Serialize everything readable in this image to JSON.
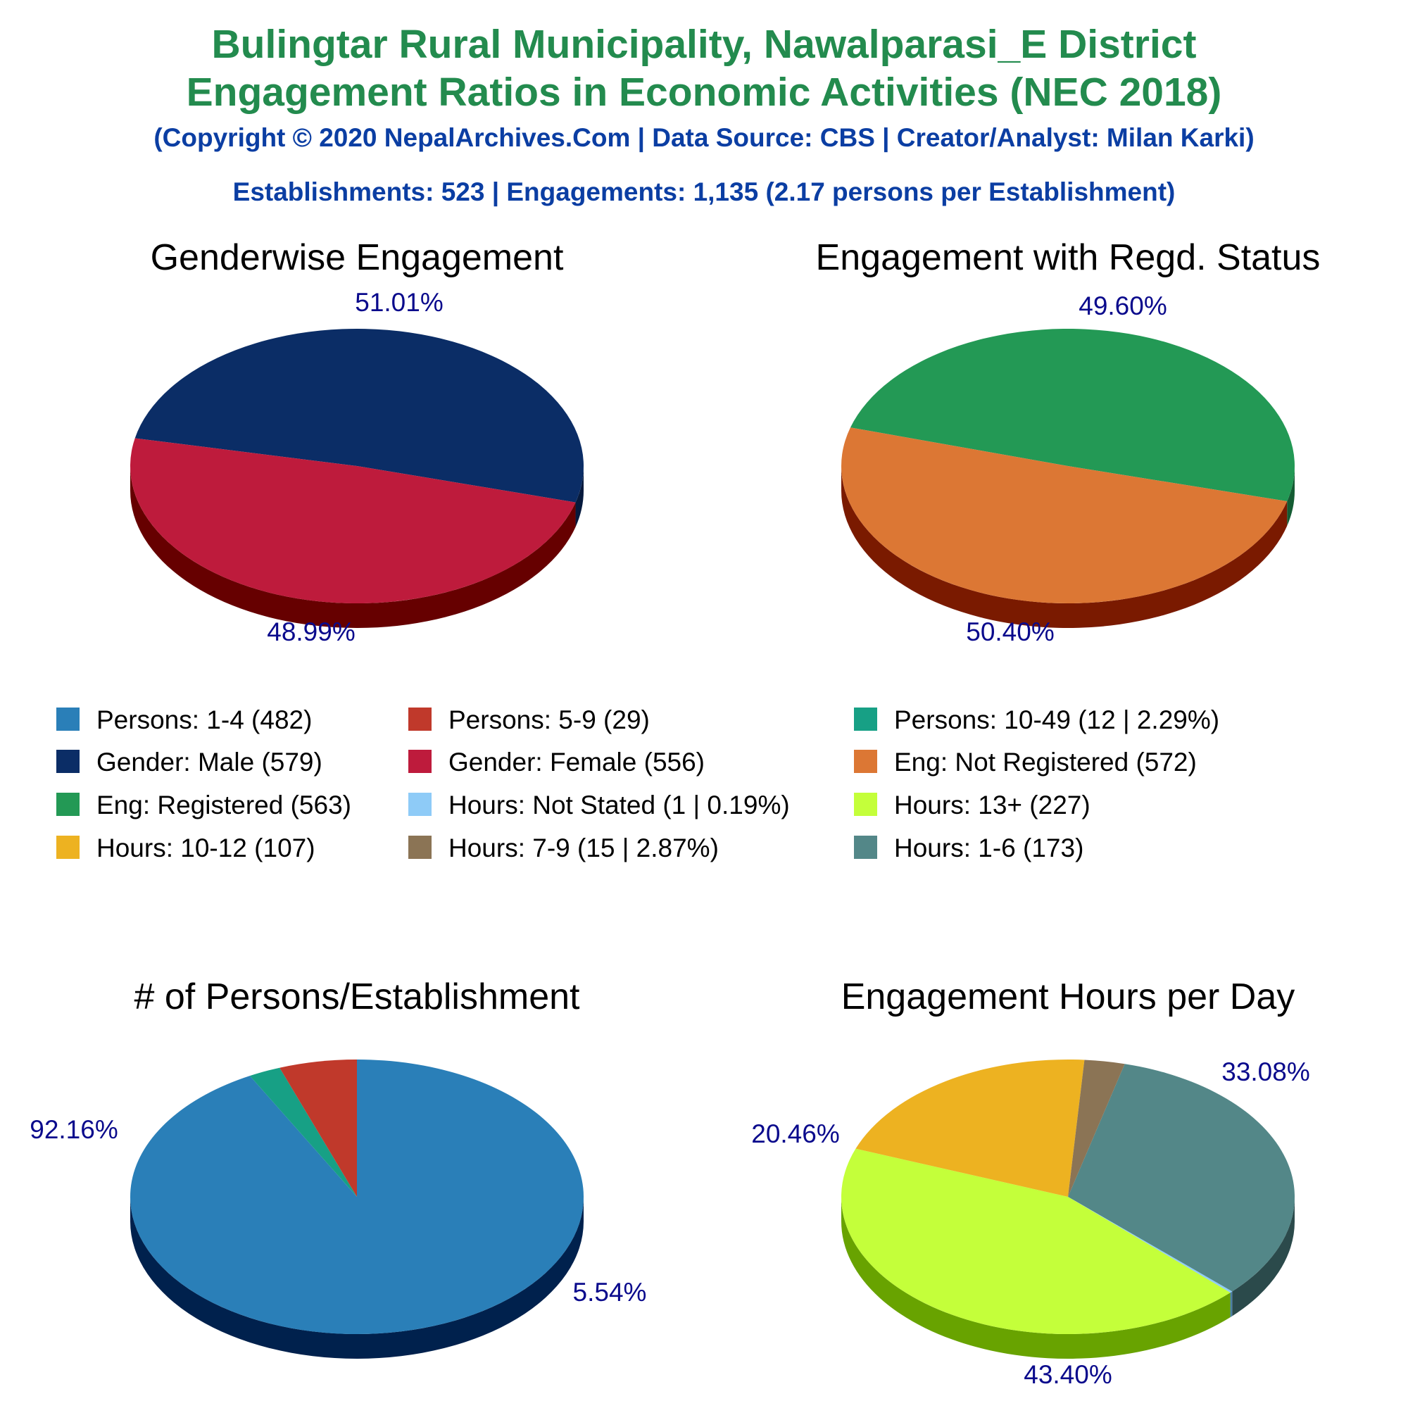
{
  "header": {
    "title_line1": "Bulingtar Rural Municipality, Nawalparasi_E District",
    "title_line2": "Engagement Ratios in Economic Activities (NEC 2018)",
    "copyright": "(Copyright © 2020 NepalArchives.Com | Data Source: CBS | Creator/Analyst: Milan Karki)",
    "summary": "Establishments: 523 | Engagements: 1,135 (2.17 persons per Establishment)"
  },
  "legend": [
    {
      "label": "Persons: 1-4 (482)",
      "color": "#2a7fb8"
    },
    {
      "label": "Persons: 5-9 (29)",
      "color": "#c0392b"
    },
    {
      "label": "Persons: 10-49 (12 | 2.29%)",
      "color": "#17a085"
    },
    {
      "label": "Gender: Male (579)",
      "color": "#0b2d66"
    },
    {
      "label": "Gender: Female (556)",
      "color": "#be1b3c"
    },
    {
      "label": "Eng: Not Registered (572)",
      "color": "#dc7734"
    },
    {
      "label": "Eng: Registered (563)",
      "color": "#239955"
    },
    {
      "label": "Hours: Not Stated (1 | 0.19%)",
      "color": "#8ecbf7"
    },
    {
      "label": "Hours: 13+ (227)",
      "color": "#c4ff3a"
    },
    {
      "label": "Hours: 10-12 (107)",
      "color": "#edb221"
    },
    {
      "label": "Hours: 7-9 (15 | 2.87%)",
      "color": "#8b7455"
    },
    {
      "label": "Hours: 1-6 (173)",
      "color": "#538788"
    }
  ],
  "chart_data": [
    {
      "type": "pie",
      "title": "Genderwise Engagement",
      "slices": [
        {
          "label": "Gender: Male",
          "value": 579,
          "percent": 51.01,
          "color": "#0b2d66",
          "side": "#061a3d",
          "pct_label": "51.01%"
        },
        {
          "label": "Gender: Female",
          "value": 556,
          "percent": 48.99,
          "color": "#be1b3c",
          "side": "#660000",
          "pct_label": "48.99%"
        }
      ]
    },
    {
      "type": "pie",
      "title": "Engagement with Regd. Status",
      "slices": [
        {
          "label": "Eng: Registered",
          "value": 563,
          "percent": 49.6,
          "color": "#239955",
          "side": "#145c33",
          "pct_label": "49.60%"
        },
        {
          "label": "Eng: Not Registered",
          "value": 572,
          "percent": 50.4,
          "color": "#dc7734",
          "side": "#7a1a00",
          "pct_label": "50.40%"
        }
      ]
    },
    {
      "type": "pie",
      "title": "# of Persons/Establishment",
      "slices": [
        {
          "label": "Persons: 1-4",
          "value": 482,
          "percent": 92.16,
          "color": "#2a7fb8",
          "side": "#00214d",
          "pct_label": "92.16%"
        },
        {
          "label": "Persons: 10-49",
          "value": 12,
          "percent": 2.29,
          "color": "#17a085",
          "side": "#005040",
          "pct_label": ""
        },
        {
          "label": "Persons: 5-9",
          "value": 29,
          "percent": 5.54,
          "color": "#c0392b",
          "side": "#6b0000",
          "pct_label": "5.54%"
        }
      ]
    },
    {
      "type": "pie",
      "title": "Engagement Hours per Day",
      "slices": [
        {
          "label": "Hours: 1-6",
          "value": 173,
          "percent": 33.08,
          "color": "#538788",
          "side": "#2b4a4b",
          "pct_label": "33.08%"
        },
        {
          "label": "Hours: Not Stated",
          "value": 1,
          "percent": 0.19,
          "color": "#8ecbf7",
          "side": "#4b7fa6",
          "pct_label": ""
        },
        {
          "label": "Hours: 13+",
          "value": 227,
          "percent": 43.4,
          "color": "#c4ff3a",
          "side": "#68a300",
          "pct_label": "43.40%"
        },
        {
          "label": "Hours: 10-12",
          "value": 107,
          "percent": 20.46,
          "color": "#edb221",
          "side": "#8a6000",
          "pct_label": "20.46%"
        },
        {
          "label": "Hours: 7-9",
          "value": 15,
          "percent": 2.87,
          "color": "#8b7455",
          "side": "#4a3a25",
          "pct_label": ""
        }
      ]
    }
  ]
}
